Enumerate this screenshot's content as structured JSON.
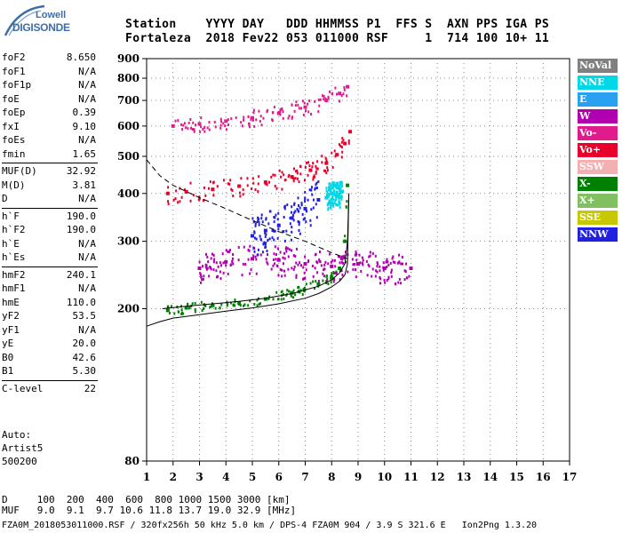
{
  "logo": {
    "line1": "Lowell",
    "line2": "DIGISONDE"
  },
  "header": {
    "line1": "Station    YYYY DAY   DDD HHMMSS P1  FFS S  AXN PPS IGA PS",
    "line2": "Fortaleza  2018 Fev22 053 011000 RSF     1  714 100 10+ 11"
  },
  "params": [
    {
      "name": "foF2",
      "value": "8.650"
    },
    {
      "name": "foF1",
      "value": "N/A"
    },
    {
      "name": "foF1p",
      "value": "N/A"
    },
    {
      "name": "foE",
      "value": "N/A"
    },
    {
      "name": "foEp",
      "value": "0.39"
    },
    {
      "name": "fxI",
      "value": "9.10"
    },
    {
      "name": "foEs",
      "value": "N/A"
    },
    {
      "name": "fmin",
      "value": "1.65"
    },
    {
      "name": "MUF(D)",
      "value": "32.92"
    },
    {
      "name": "M(D)",
      "value": "3.81"
    },
    {
      "name": "D",
      "value": "N/A"
    },
    {
      "name": "h`F",
      "value": "190.0"
    },
    {
      "name": "h`F2",
      "value": "190.0"
    },
    {
      "name": "h`E",
      "value": "N/A"
    },
    {
      "name": "h`Es",
      "value": "N/A"
    },
    {
      "name": "hmF2",
      "value": "240.1"
    },
    {
      "name": "hmF1",
      "value": "N/A"
    },
    {
      "name": "hmE",
      "value": "110.0"
    },
    {
      "name": "yF2",
      "value": "53.5"
    },
    {
      "name": "yF1",
      "value": "N/A"
    },
    {
      "name": "yE",
      "value": "20.0"
    },
    {
      "name": "B0",
      "value": "42.6"
    },
    {
      "name": "B1",
      "value": "5.30"
    },
    {
      "name": "C-level",
      "value": "22"
    }
  ],
  "info": {
    "auto": "Auto:",
    "artist": "Artist5",
    "code": "500200"
  },
  "footer": {
    "line1": "D     100  200  400  600  800 1000 1500 3000 [km]",
    "line2": "MUF   9.0  9.1  9.7 10.6 11.8 13.7 19.0 32.9 [MHz]"
  },
  "bottom_line": "FZA0M_2018053011000.RSF / 320fx256h 50 kHz 5.0 km / DPS-4 FZA0M 904 / 3.9 S 321.6 E   Ion2Png 1.3.20",
  "legend": [
    {
      "label": "NoVal",
      "color": "#808080"
    },
    {
      "label": "NNE",
      "color": "#00d8e8"
    },
    {
      "label": "E",
      "color": "#2aa0f0"
    },
    {
      "label": "W",
      "color": "#b000b0"
    },
    {
      "label": "Vo-",
      "color": "#e01c8c"
    },
    {
      "label": "Vo+",
      "color": "#e8002a"
    },
    {
      "label": "SSW",
      "color": "#f4b0b0"
    },
    {
      "label": "X-",
      "color": "#008000"
    },
    {
      "label": "X+",
      "color": "#80c060"
    },
    {
      "label": "SSE",
      "color": "#c8c800"
    },
    {
      "label": "NNW",
      "color": "#2020e0"
    }
  ],
  "chart_data": {
    "type": "scatter",
    "title": "",
    "xlabel": "",
    "ylabel": "",
    "xlim": [
      1,
      17
    ],
    "ylim": [
      80,
      900
    ],
    "y_scale": "log",
    "x_ticks": [
      1,
      2,
      3,
      4,
      5,
      6,
      7,
      8,
      9,
      10,
      11,
      12,
      13,
      14,
      15,
      16,
      17
    ],
    "y_ticks": [
      80,
      200,
      300,
      400,
      500,
      600,
      700,
      800,
      900
    ],
    "series": [
      {
        "name": "X-",
        "color": "#008000",
        "cluster": "o-trace",
        "x": [
          1.8,
          2.5,
          3.5,
          4.5,
          5.5,
          6.5,
          7.5,
          8.0,
          8.3,
          8.5,
          8.6
        ],
        "y": [
          198,
          201,
          204,
          207,
          212,
          220,
          232,
          242,
          255,
          300,
          420
        ]
      },
      {
        "name": "Vo+",
        "color": "#e8002a",
        "cluster": "o-trace-2nd",
        "x": [
          1.8,
          2.5,
          3.5,
          4.5,
          5.5,
          6.5,
          7.2,
          7.8,
          8.2,
          8.5,
          8.7
        ],
        "y": [
          400,
          404,
          410,
          418,
          428,
          442,
          460,
          480,
          505,
          540,
          580
        ]
      },
      {
        "name": "Vo-",
        "color": "#e01c8c",
        "cluster": "o-trace-3rd",
        "x": [
          2.0,
          3.0,
          4.0,
          5.0,
          6.0,
          7.0,
          7.8,
          8.3,
          8.6
        ],
        "y": [
          600,
          608,
          618,
          630,
          648,
          672,
          700,
          730,
          760
        ]
      },
      {
        "name": "W",
        "color": "#b000b0",
        "cluster": "spread-F",
        "x": [
          3.0,
          4.0,
          5.0,
          6.0,
          7.0,
          8.0,
          9.0,
          10.0,
          11.0
        ],
        "y": [
          255,
          265,
          270,
          268,
          262,
          258,
          262,
          255,
          255
        ]
      },
      {
        "name": "NNW",
        "color": "#2020e0",
        "cluster": "oblique",
        "x": [
          5.0,
          5.5,
          6.0,
          6.5,
          7.0,
          7.5
        ],
        "y": [
          310,
          320,
          330,
          345,
          365,
          385
        ]
      },
      {
        "name": "NNE",
        "color": "#00d8e8",
        "cluster": "oblique-high",
        "x": [
          7.8,
          8.0,
          8.2,
          8.4
        ],
        "y": [
          390,
          400,
          395,
          405
        ]
      }
    ],
    "profile_curve": {
      "x": [
        1.0,
        1.5,
        2.0,
        3.0,
        4.0,
        5.0,
        6.0,
        7.0,
        7.5,
        8.0,
        8.3,
        8.5,
        8.6,
        8.65
      ],
      "y": [
        180,
        185,
        189,
        193,
        197,
        201,
        206,
        213,
        219,
        228,
        236,
        245,
        262,
        400
      ]
    },
    "model_curve": {
      "x": [
        1.6,
        2.5,
        3.5,
        4.5,
        5.5,
        6.5,
        7.5,
        8.0,
        8.3,
        8.5,
        8.6,
        8.65
      ],
      "y": [
        200,
        203,
        206,
        209,
        213,
        219,
        229,
        238,
        248,
        262,
        300,
        400
      ]
    },
    "muf_curve": {
      "x": [
        1.0,
        1.5,
        2.0,
        3.0,
        4.0,
        5.0,
        6.0,
        7.0,
        8.0,
        8.6
      ],
      "y": [
        490,
        445,
        420,
        390,
        365,
        340,
        318,
        300,
        280,
        270
      ]
    }
  }
}
